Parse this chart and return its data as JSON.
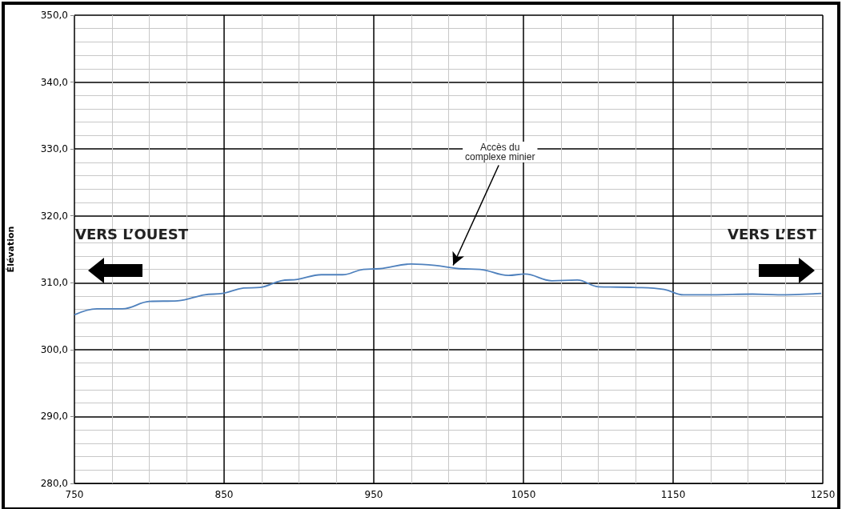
{
  "chart_data": {
    "type": "line",
    "ylabel": "Élévation",
    "x": [
      750,
      765,
      782,
      800,
      819,
      837,
      849,
      863,
      874,
      888,
      899,
      915,
      929,
      943,
      954,
      975,
      991,
      1007,
      1021,
      1040,
      1051,
      1069,
      1086,
      1100,
      1124,
      1144,
      1157,
      1176,
      1203,
      1220,
      1249
    ],
    "series": [
      {
        "color": "#4f81bd",
        "values": [
          305.2,
          306.1,
          306.1,
          307.2,
          307.3,
          308.2,
          308.4,
          309.2,
          309.3,
          310.3,
          310.5,
          311.2,
          311.2,
          312.0,
          312.1,
          312.8,
          312.6,
          312.1,
          312.0,
          311.1,
          311.3,
          310.3,
          310.4,
          309.4,
          309.3,
          309.0,
          308.2,
          308.2,
          308.3,
          308.2,
          308.4
        ]
      }
    ],
    "xlim": [
      750,
      1250
    ],
    "xticks": [
      750,
      850,
      950,
      1050,
      1150,
      1250
    ],
    "ylim": [
      280,
      350
    ],
    "yticks": [
      {
        "value": 280,
        "label": "280,0"
      },
      {
        "value": 290,
        "label": "290,0"
      },
      {
        "value": 300,
        "label": "300,0"
      },
      {
        "value": 310,
        "label": "310,0"
      },
      {
        "value": 320,
        "label": "320,0"
      },
      {
        "value": 330,
        "label": "330,0"
      },
      {
        "value": 340,
        "label": "340,0"
      },
      {
        "value": 350,
        "label": "350,0"
      }
    ],
    "grid": true,
    "marker": "none",
    "line_style": "solid",
    "annotations": [
      {
        "text": "Accès du\ncomplexe minier",
        "x": 1003,
        "y": 312.6
      },
      "VERS L’OUEST",
      "VERS L’EST"
    ]
  }
}
